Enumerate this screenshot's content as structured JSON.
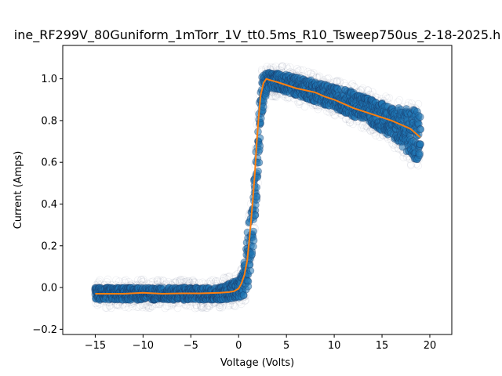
{
  "chart_data": {
    "type": "scatter",
    "title": "ine_RF299V_80Guniform_1mTorr_1V_tt0.5ms_R10_Tsweep750us_2-18-2025.h",
    "xlabel": "Voltage (Volts)",
    "ylabel": "Current (Amps)",
    "xlim": [
      -18.4,
      22.3
    ],
    "ylim": [
      -0.225,
      1.16
    ],
    "xticks": [
      -15,
      -10,
      -5,
      0,
      5,
      10,
      15,
      20
    ],
    "yticks": [
      -0.2,
      0.0,
      0.2,
      0.4,
      0.6,
      0.8,
      1.0
    ],
    "xtick_labels": [
      "−15",
      "−10",
      "−5",
      "0",
      "5",
      "10",
      "15",
      "20"
    ],
    "ytick_labels": [
      "−0.2",
      "0.0",
      "0.2",
      "0.4",
      "0.6",
      "0.8",
      "1.0"
    ],
    "grid": false,
    "colors": {
      "scatter": "#1f77b4",
      "scatter_edge": "#1b2f5a",
      "fit": "#ff7f0e"
    },
    "series": [
      {
        "kind": "scatter-band",
        "band": [
          {
            "x": -15,
            "lo": -0.06,
            "hi": 0.0
          },
          {
            "x": -10,
            "lo": -0.06,
            "hi": 0.0
          },
          {
            "x": -5,
            "lo": -0.06,
            "hi": 0.0
          },
          {
            "x": -2,
            "lo": -0.06,
            "hi": 0.0
          },
          {
            "x": 0,
            "lo": -0.05,
            "hi": 0.04
          },
          {
            "x": 0.5,
            "lo": -0.04,
            "hi": 0.08
          },
          {
            "x": 1.0,
            "lo": 0.0,
            "hi": 0.3
          },
          {
            "x": 1.3,
            "lo": 0.1,
            "hi": 0.4
          },
          {
            "x": 1.6,
            "lo": 0.2,
            "hi": 0.5
          },
          {
            "x": 2.0,
            "lo": 0.5,
            "hi": 0.82
          },
          {
            "x": 2.4,
            "lo": 0.8,
            "hi": 1.02
          },
          {
            "x": 3.0,
            "lo": 0.95,
            "hi": 1.03
          },
          {
            "x": 4.0,
            "lo": 0.95,
            "hi": 1.03
          },
          {
            "x": 6.0,
            "lo": 0.92,
            "hi": 1.01
          },
          {
            "x": 8.0,
            "lo": 0.89,
            "hi": 0.99
          },
          {
            "x": 10.0,
            "lo": 0.86,
            "hi": 0.96
          },
          {
            "x": 12.0,
            "lo": 0.82,
            "hi": 0.94
          },
          {
            "x": 14.0,
            "lo": 0.78,
            "hi": 0.9
          },
          {
            "x": 16.0,
            "lo": 0.72,
            "hi": 0.87
          },
          {
            "x": 17.0,
            "lo": 0.68,
            "hi": 0.86
          },
          {
            "x": 18.0,
            "lo": 0.62,
            "hi": 0.86
          },
          {
            "x": 19.0,
            "lo": 0.6,
            "hi": 0.84
          }
        ]
      },
      {
        "kind": "line",
        "x": [
          -15,
          -14,
          -12,
          -10,
          -8,
          -6,
          -4,
          -2,
          -1,
          -0.5,
          0,
          0.3,
          0.6,
          0.9,
          1.1,
          1.3,
          1.5,
          1.7,
          1.9,
          2.1,
          2.3,
          2.6,
          2.9,
          3.2,
          3.6,
          4.0,
          5.0,
          6.0,
          7.0,
          8.0,
          9.0,
          10.0,
          11.0,
          12.0,
          13.0,
          14.0,
          15.0,
          16.0,
          17.0,
          18.0,
          19.0
        ],
        "y": [
          -0.03,
          -0.03,
          -0.03,
          -0.025,
          -0.03,
          -0.028,
          -0.028,
          -0.025,
          -0.022,
          -0.018,
          -0.005,
          0.02,
          0.06,
          0.13,
          0.22,
          0.32,
          0.43,
          0.55,
          0.7,
          0.82,
          0.92,
          0.98,
          1.0,
          0.995,
          0.99,
          0.985,
          0.97,
          0.955,
          0.945,
          0.935,
          0.915,
          0.9,
          0.88,
          0.86,
          0.845,
          0.83,
          0.815,
          0.8,
          0.78,
          0.76,
          0.72
        ]
      }
    ]
  }
}
